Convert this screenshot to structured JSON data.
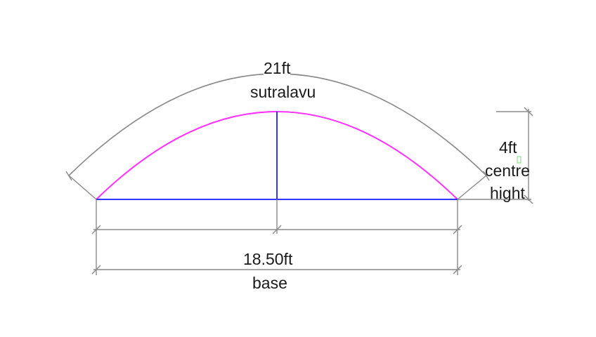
{
  "colors": {
    "arc_outer": "#8a8a8a",
    "arc_inner": "#ff33ff",
    "base_line": "#3333ff",
    "dimension": "#8a8a8a",
    "text": "#1a1a1a",
    "marker": "#7bd87b"
  },
  "arc_length": {
    "value": "21ft",
    "name": "sutralavu"
  },
  "height": {
    "value": "4ft",
    "line1": "centre",
    "line2": "hight"
  },
  "base": {
    "value": "18.50ft",
    "name": "base"
  }
}
